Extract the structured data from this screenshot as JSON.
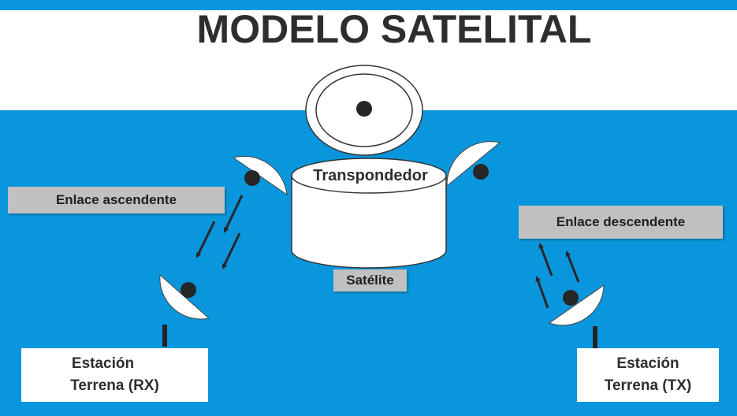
{
  "title": "MODELO SATELITAL",
  "labels": {
    "transponder": "Transpondedor",
    "satellite": "Satélite",
    "uplink": "Enlace ascendente",
    "downlink": "Enlace descendente",
    "station_rx_line1": "Estación",
    "station_rx_line2": "Terrena (RX)",
    "station_tx_line1": "Estación",
    "station_tx_line2": "Terrena (TX)"
  },
  "colors": {
    "background_blue": "#0a96dd",
    "box_gray": "#c0c0c0",
    "title_text": "#2e2e2e",
    "dot": "#262626"
  },
  "icons": [
    "satellite-dish-icon",
    "arrow-icon"
  ]
}
